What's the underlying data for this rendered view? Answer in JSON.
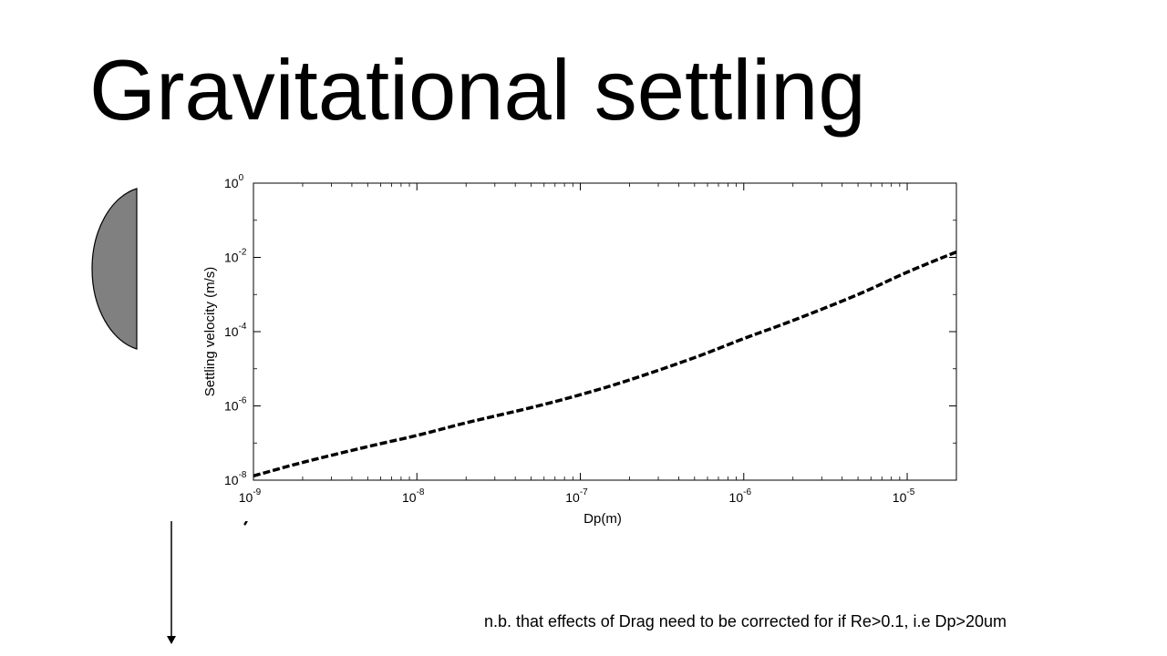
{
  "slide": {
    "title": "Gravitational settling",
    "footnote": "n.b. that effects of Drag need to be corrected for if Re>0.1, i.e Dp>20um"
  },
  "colors": {
    "particle_fill": "#808080",
    "curve": "#000000",
    "axis": "#000000"
  },
  "chart_data": {
    "type": "line",
    "xlabel": "Dp(m)",
    "ylabel": "Settling velocity (m/s)",
    "xscale": "log",
    "yscale": "log",
    "xlim": [
      1e-09,
      2e-05
    ],
    "ylim": [
      1e-08,
      1
    ],
    "grid": false,
    "x_ticks": [
      {
        "base": "10",
        "exp": "-9",
        "value": 1e-09
      },
      {
        "base": "10",
        "exp": "-8",
        "value": 1e-08
      },
      {
        "base": "10",
        "exp": "-7",
        "value": 1e-07
      },
      {
        "base": "10",
        "exp": "-6",
        "value": 1e-06
      },
      {
        "base": "10",
        "exp": "-5",
        "value": 1e-05
      }
    ],
    "y_ticks": [
      {
        "base": "10",
        "exp": "-8",
        "value": 1e-08
      },
      {
        "base": "10",
        "exp": "-6",
        "value": 1e-06
      },
      {
        "base": "10",
        "exp": "-4",
        "value": 0.0001
      },
      {
        "base": "10",
        "exp": "-2",
        "value": 0.01
      },
      {
        "base": "10",
        "exp": "0",
        "value": 1
      }
    ],
    "series": [
      {
        "style": "dashed",
        "x": [
          1e-09,
          2e-09,
          5e-09,
          1e-08,
          2e-08,
          5e-08,
          1e-07,
          2e-07,
          5e-07,
          1e-06,
          2e-06,
          5e-06,
          1e-05,
          2e-05
        ],
        "y": [
          1.3e-08,
          3e-08,
          8e-08,
          1.6e-07,
          3.5e-07,
          9e-07,
          2e-06,
          5e-06,
          2e-05,
          6.5e-05,
          0.0002,
          0.001,
          0.004,
          0.014
        ]
      }
    ]
  }
}
